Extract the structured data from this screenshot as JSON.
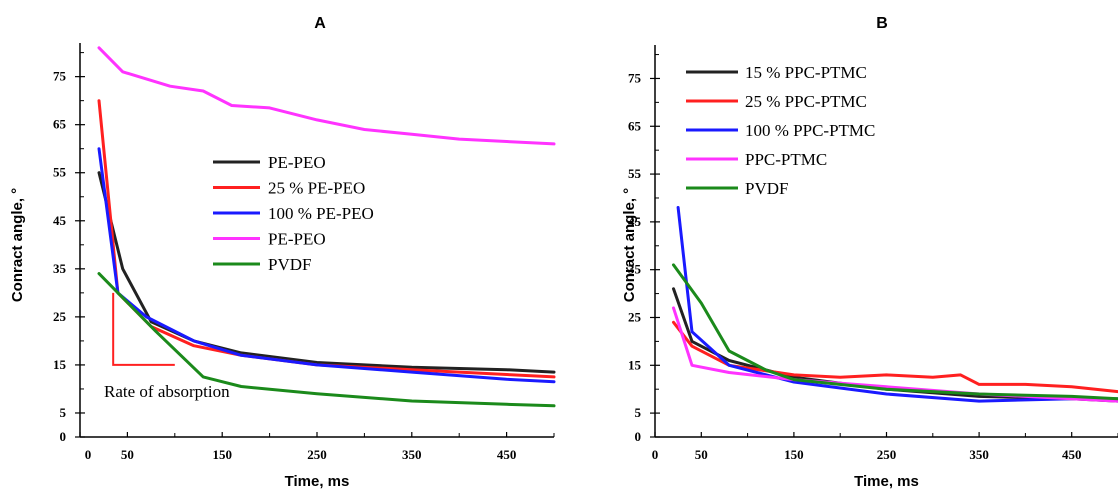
{
  "chart_data": [
    {
      "type": "line",
      "title": "A",
      "xlabel": "Time, ms",
      "ylabel": "Conract angle, °",
      "xlim": [
        0,
        500
      ],
      "ylim": [
        0,
        82
      ],
      "xticks": [
        0,
        50,
        150,
        250,
        350,
        450
      ],
      "yticks": [
        0,
        5,
        15,
        25,
        35,
        45,
        55,
        65,
        75
      ],
      "grid": false,
      "legend_position": "center",
      "annotation": "Rate of absorption",
      "series": [
        {
          "name": "PE-PEO",
          "color": "#222222",
          "x": [
            20,
            45,
            75,
            120,
            170,
            250,
            350,
            450,
            500
          ],
          "y": [
            55,
            35,
            24,
            20,
            17.5,
            15.5,
            14.5,
            14,
            13.5
          ]
        },
        {
          "name": "25 % PE-PEO",
          "color": "#ff2020",
          "x": [
            20,
            40,
            75,
            120,
            170,
            250,
            350,
            450,
            500
          ],
          "y": [
            70,
            30,
            23,
            19,
            17,
            15,
            14,
            13,
            12.5
          ]
        },
        {
          "name": "100 % PE-PEO",
          "color": "#1a1aff",
          "x": [
            20,
            40,
            70,
            120,
            170,
            250,
            350,
            450,
            500
          ],
          "y": [
            60,
            30,
            25,
            20,
            17,
            15,
            13.5,
            12,
            11.5
          ]
        },
        {
          "name": "PE-PEO",
          "color": "#ff33ff",
          "x": [
            20,
            45,
            95,
            130,
            160,
            200,
            250,
            300,
            350,
            400,
            450,
            500
          ],
          "y": [
            81,
            76,
            73,
            72,
            69,
            68.5,
            66,
            64,
            63,
            62,
            61.5,
            61
          ]
        },
        {
          "name": "PVDF",
          "color": "#1b8a1b",
          "x": [
            20,
            80,
            130,
            170,
            250,
            350,
            450,
            500
          ],
          "y": [
            34,
            22,
            12.5,
            10.5,
            9,
            7.5,
            6.8,
            6.5
          ]
        }
      ]
    },
    {
      "type": "line",
      "title": "B",
      "xlabel": "Time, ms",
      "ylabel": "Conract angle, °",
      "xlim": [
        0,
        500
      ],
      "ylim": [
        0,
        82
      ],
      "xticks": [
        0,
        50,
        150,
        250,
        350,
        450
      ],
      "yticks": [
        0,
        5,
        15,
        25,
        35,
        45,
        55,
        65,
        75
      ],
      "grid": false,
      "legend_position": "top-left",
      "series": [
        {
          "name": "15 % PPC-PTMC",
          "color": "#222222",
          "x": [
            20,
            40,
            80,
            150,
            250,
            350,
            450,
            500
          ],
          "y": [
            31,
            20,
            16,
            12.5,
            10,
            8.5,
            8,
            7.5
          ]
        },
        {
          "name": "25 % PPC-PTMC",
          "color": "#ff2020",
          "x": [
            20,
            40,
            80,
            150,
            200,
            250,
            300,
            330,
            350,
            400,
            450,
            500
          ],
          "y": [
            24,
            19,
            15,
            13,
            12.5,
            13,
            12.5,
            13,
            11,
            11,
            10.5,
            9.5
          ]
        },
        {
          "name": "100 % PPC-PTMC",
          "color": "#1a1aff",
          "x": [
            25,
            40,
            80,
            150,
            250,
            350,
            450,
            500
          ],
          "y": [
            48,
            22,
            15,
            11.5,
            9,
            7.5,
            8,
            8
          ]
        },
        {
          "name": "PPC-PTMC",
          "color": "#ff33ff",
          "x": [
            20,
            40,
            80,
            150,
            250,
            350,
            450,
            500
          ],
          "y": [
            27,
            15,
            13.5,
            12,
            10.5,
            9,
            8,
            7.5
          ]
        },
        {
          "name": "PVDF",
          "color": "#1b8a1b",
          "x": [
            20,
            50,
            80,
            120,
            150,
            250,
            350,
            450,
            500
          ],
          "y": [
            36,
            28,
            18,
            14,
            12,
            10,
            9,
            8.5,
            8
          ]
        }
      ]
    }
  ]
}
